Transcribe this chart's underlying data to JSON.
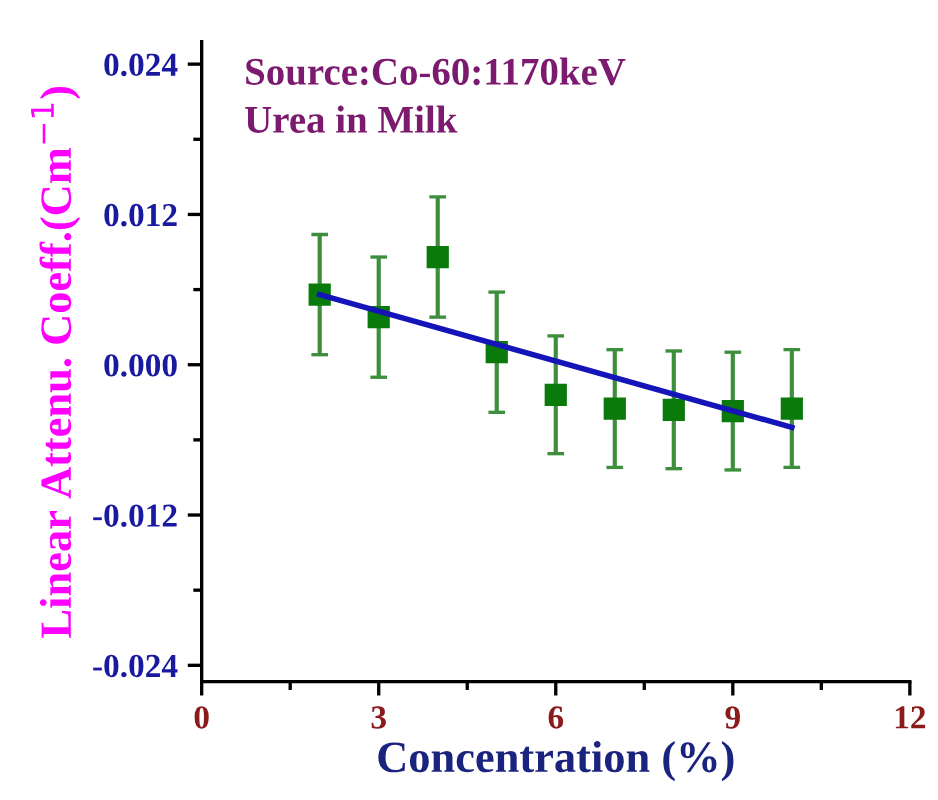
{
  "chart_data": {
    "type": "scatter",
    "xlabel": "Concentration (%)",
    "ylabel": "Linear Attenu. Coeff.(Cm$^{−1}$)",
    "annotations": [
      "Source:Co-60:1170keV",
      "Urea in Milk"
    ],
    "x": [
      2,
      3,
      4,
      5,
      6,
      7,
      8,
      9,
      10
    ],
    "series": [
      {
        "color": "#0a7a0a",
        "marker": "square",
        "values": [
          0.0056,
          0.0038,
          0.0086,
          0.001,
          -0.0024,
          -0.0035,
          -0.0036,
          -0.0037,
          -0.0035
        ],
        "errors": [
          0.0048,
          0.0048,
          0.0048,
          0.0048,
          0.0047,
          0.0047,
          0.0047,
          0.0047,
          0.0047
        ]
      },
      {
        "type": "line",
        "marker": "none",
        "color": "#1414b8",
        "x": [
          2,
          10
        ],
        "values": [
          0.0056,
          -0.005
        ]
      }
    ],
    "xlim": [
      0,
      12
    ],
    "xticks": [
      0,
      3,
      6,
      9,
      12
    ],
    "ylim": [
      -0.0253,
      0.0258
    ],
    "yticks": [
      {
        "value": -0.024,
        "label": "-0.024"
      },
      {
        "value": -0.012,
        "label": "-0.012"
      },
      {
        "value": 0,
        "label": "0.000"
      },
      {
        "value": 0.012,
        "label": "0.012"
      },
      {
        "value": 0.024,
        "label": "0.024"
      }
    ],
    "grid": false,
    "legend": false
  }
}
